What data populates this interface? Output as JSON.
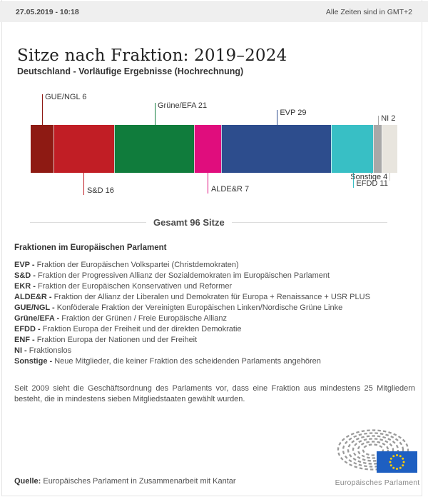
{
  "header": {
    "datetime": "27.05.2019 - 10:18",
    "timezone_note": "Alle Zeiten sind in GMT+2"
  },
  "title": "Sitze nach Fraktion: 2019–2024",
  "subtitle": "Deutschland - Vorläufige Ergebnisse (Hochrechnung)",
  "chart_data": {
    "type": "bar",
    "orientation": "horizontal-stacked",
    "title": "Sitze nach Fraktion: 2019–2024",
    "total_seats": 96,
    "total_label": "Gesamt 96 Sitze",
    "categories": [
      "GUE/NGL",
      "S&D",
      "Grüne/EFA",
      "ALDE&R",
      "EVP",
      "EFDD",
      "NI",
      "Sonstige"
    ],
    "values": [
      6,
      16,
      21,
      7,
      29,
      11,
      2,
      4
    ],
    "segments": [
      {
        "name": "GUE/NGL",
        "label": "GUE/NGL 6",
        "seats": 6,
        "color": "#8e1a13"
      },
      {
        "name": "S&D",
        "label": "S&D 16",
        "seats": 16,
        "color": "#c11e25"
      },
      {
        "name": "Grüne/EFA",
        "label": "Grüne/EFA 21",
        "seats": 21,
        "color": "#107c3c"
      },
      {
        "name": "ALDE&R",
        "label": "ALDE&R 7",
        "seats": 7,
        "color": "#e00d7d"
      },
      {
        "name": "EVP",
        "label": "EVP 29",
        "seats": 29,
        "color": "#2d4d8d"
      },
      {
        "name": "EFDD",
        "label": "EFDD 11",
        "seats": 11,
        "color": "#38bfc5"
      },
      {
        "name": "NI",
        "label": "NI 2",
        "seats": 2,
        "color": "#a8a8a8"
      },
      {
        "name": "Sonstige",
        "label": "Sonstige 4",
        "seats": 4,
        "color": "#e8e5de",
        "line_color": "#cfccc6"
      }
    ]
  },
  "legend": {
    "heading": "Fraktionen im Europäischen Parlament",
    "separator": " - ",
    "items": [
      {
        "abbr": "EVP",
        "desc": "Fraktion der Europäischen Volkspartei (Christdemokraten)"
      },
      {
        "abbr": "S&D",
        "desc": "Fraktion der Progressiven Allianz der Sozialdemokraten im Europäischen Parlament"
      },
      {
        "abbr": "EKR",
        "desc": "Fraktion der Europäischen Konservativen und Reformer"
      },
      {
        "abbr": "ALDE&R",
        "desc": "Fraktion der Allianz der Liberalen und Demokraten für Europa + Renaissance + USR PLUS"
      },
      {
        "abbr": "GUE/NGL",
        "desc": "Konföderale Fraktion der Vereinigten Europäischen Linken/Nordische Grüne Linke"
      },
      {
        "abbr": "Grüne/EFA",
        "desc": "Fraktion der Grünen / Freie Europäische Allianz"
      },
      {
        "abbr": "EFDD",
        "desc": "Fraktion Europa der Freiheit und der direkten Demokratie"
      },
      {
        "abbr": "ENF",
        "desc": "Fraktion Europa der Nationen und der Freiheit"
      },
      {
        "abbr": "NI",
        "desc": "Fraktionslos"
      },
      {
        "abbr": "Sonstige",
        "desc": "Neue Mitglieder, die keiner Fraktion des scheidenden Parlaments angehören"
      }
    ],
    "note": "Seit 2009 sieht die Geschäftsordnung des Parlaments vor, dass eine Fraktion aus mindestens 25 Mitgliedern besteht, die in mindestens sieben Mitgliedstaaten gewählt wurden."
  },
  "footer": {
    "source_label": "Quelle:",
    "source_text": " Europäisches Parlament in Zusammenarbeit mit Kantar",
    "logo_text": "Europäisches Parlament",
    "flag_color": "#1e5fc1",
    "star_color": "#ffcc00"
  }
}
